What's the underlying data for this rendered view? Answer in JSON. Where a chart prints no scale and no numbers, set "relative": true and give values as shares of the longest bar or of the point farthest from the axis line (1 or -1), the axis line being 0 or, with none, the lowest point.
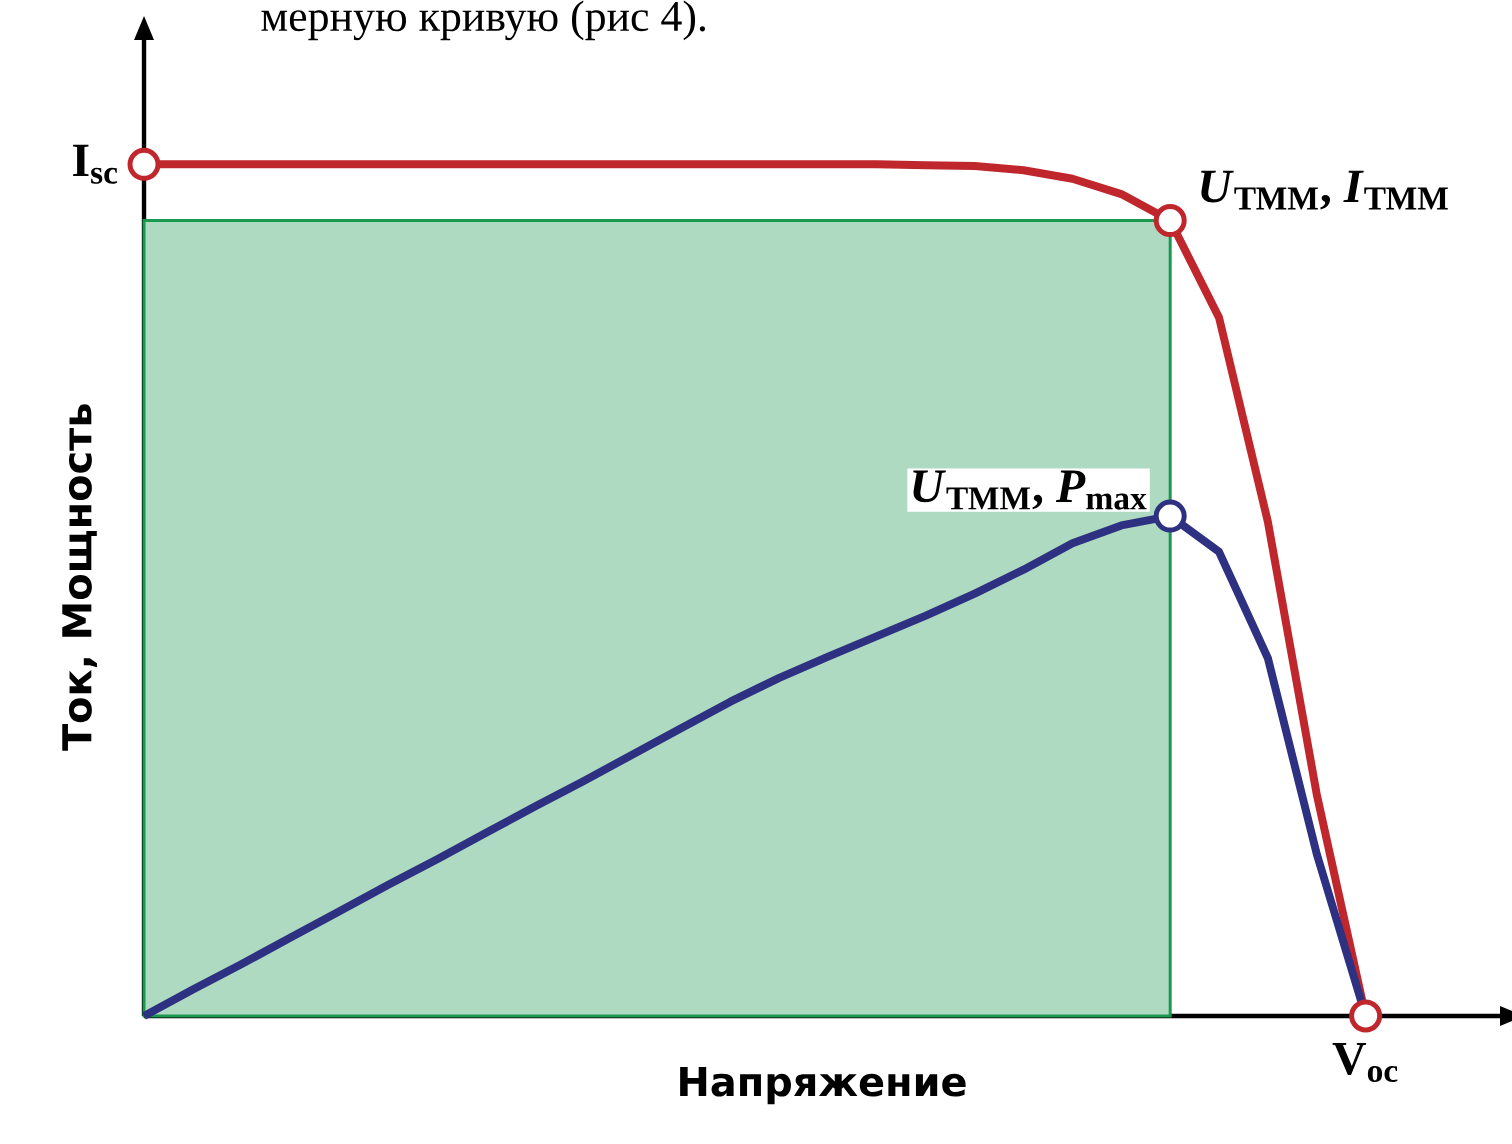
{
  "chart_data": {
    "type": "line",
    "relative": true,
    "xlabel": "Напряжение",
    "ylabel": "Ток, Мощность",
    "categories": [
      null,
      null,
      null,
      null,
      null,
      null,
      null,
      null,
      null,
      null,
      null,
      null,
      null,
      null,
      null,
      null,
      null,
      null,
      null,
      null,
      null,
      null,
      null,
      null,
      null,
      null
    ],
    "series": [
      {
        "type": "area",
        "color": "#1a9850",
        "values": [
          0.934,
          0.934,
          0.934,
          0.934,
          0.934,
          0.934,
          0.934,
          0.934,
          0.934,
          0.934,
          0.934,
          0.934,
          0.934,
          0.934,
          0.934,
          0.934,
          0.934,
          0.934,
          0.934,
          0.934,
          0.934,
          0.934,
          null,
          null,
          null,
          null
        ]
      },
      {
        "color": "#c0272d",
        "values": [
          1,
          1,
          1,
          1,
          1,
          1,
          1,
          1,
          1,
          1,
          1,
          1,
          1,
          1,
          1,
          1,
          0.999,
          0.998,
          0.993,
          0.983,
          0.965,
          0.934,
          0.82,
          0.58,
          0.26,
          0
        ]
      },
      {
        "color": "#2e3181",
        "values": [
          0,
          0.031,
          0.061,
          0.092,
          0.123,
          0.154,
          0.184,
          0.215,
          0.246,
          0.276,
          0.307,
          0.338,
          0.369,
          0.397,
          0.422,
          0.446,
          0.47,
          0.496,
          0.524,
          0.555,
          0.576,
          0.587,
          0.545,
          0.42,
          0.19,
          0
        ]
      }
    ],
    "annotations": [
      "мерную кривую (рис 4).",
      "**I**$_{sc}$",
      "*U*$_{ТММ}$, *I*$_{ТММ}$",
      "*U*$_{ТММ}$, *P*$_{max}$",
      "**V**$_{oc}$"
    ]
  }
}
